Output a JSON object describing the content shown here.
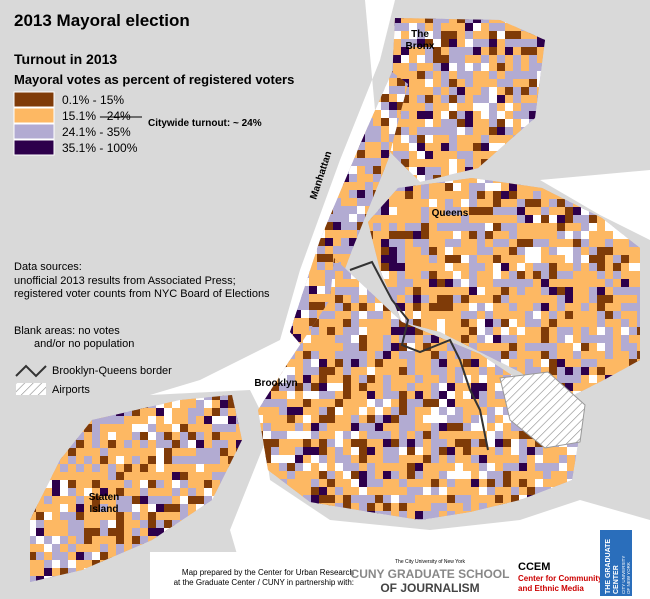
{
  "title": "2013 Mayoral election",
  "subtitle": "Turnout in 2013",
  "legend": {
    "title": "Mayoral votes as percent of registered voters",
    "items": [
      {
        "label": "0.1% - 15%",
        "color": "#7f3b08"
      },
      {
        "label": "15.1% - 24%",
        "color": "#fdb863"
      },
      {
        "label": "24.1% - 35%",
        "color": "#b2abd2"
      },
      {
        "label": "35.1% - 100%",
        "color": "#2d004b"
      }
    ],
    "note": "Citywide turnout: ~ 24%"
  },
  "sources": {
    "heading": "Data sources:",
    "lines": [
      "unofficial 2013 results from Associated Press;",
      "registered voter counts from NYC Board of Elections"
    ]
  },
  "blank": [
    "Blank areas: no votes",
    "and/or no population"
  ],
  "border_label": "Brooklyn-Queens border",
  "airports_label": "Airports",
  "places": {
    "bronx": [
      "The",
      "Bronx"
    ],
    "manhattan": "Manhattan",
    "queens": "Queens",
    "brooklyn": "Brooklyn",
    "staten_island": [
      "Staten",
      "Island"
    ]
  },
  "credits": [
    "Map prepared by the Center for Urban Research",
    "at the Graduate Center / CUNY in partnership with:"
  ],
  "logos": {
    "cuny_top": "The City University of New York",
    "cuny_1": "CUNY GRADUATE SCHOOL",
    "cuny_2": "OF JOURNALISM",
    "ccem": "CCEM",
    "ccem_1": "Center for Community",
    "ccem_2": "and Ethnic Media",
    "gc_1": "THE GRADUATE",
    "gc_2": "CENTER",
    "gc_3": "CITY UNIVERSITY",
    "gc_4": "OF NEW YORK"
  }
}
